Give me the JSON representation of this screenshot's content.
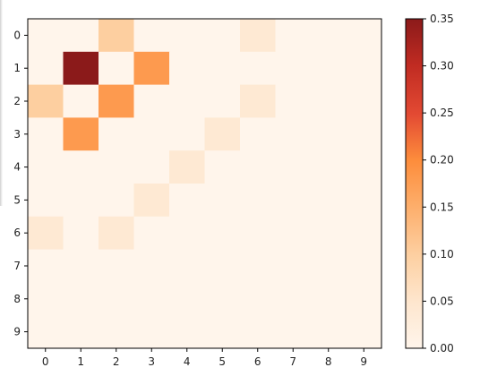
{
  "chart_data": {
    "type": "heatmap",
    "x_ticks": [
      "0",
      "1",
      "2",
      "3",
      "4",
      "5",
      "6",
      "7",
      "8",
      "9"
    ],
    "y_ticks": [
      "0",
      "1",
      "2",
      "3",
      "4",
      "5",
      "6",
      "7",
      "8",
      "9"
    ],
    "values": [
      [
        0.0,
        0.0,
        0.1,
        0.0,
        0.0,
        0.0,
        0.04,
        0.0,
        0.0,
        0.0
      ],
      [
        0.0,
        0.35,
        0.0,
        0.18,
        0.0,
        0.0,
        0.0,
        0.0,
        0.0,
        0.0
      ],
      [
        0.1,
        0.0,
        0.18,
        0.0,
        0.0,
        0.0,
        0.04,
        0.0,
        0.0,
        0.0
      ],
      [
        0.0,
        0.18,
        0.0,
        0.0,
        0.0,
        0.04,
        0.0,
        0.0,
        0.0,
        0.0
      ],
      [
        0.0,
        0.0,
        0.0,
        0.0,
        0.04,
        0.0,
        0.0,
        0.0,
        0.0,
        0.0
      ],
      [
        0.0,
        0.0,
        0.0,
        0.04,
        0.0,
        0.0,
        0.0,
        0.0,
        0.0,
        0.0
      ],
      [
        0.04,
        0.0,
        0.04,
        0.0,
        0.0,
        0.0,
        0.0,
        0.0,
        0.0,
        0.0
      ],
      [
        0.0,
        0.0,
        0.0,
        0.0,
        0.0,
        0.0,
        0.0,
        0.0,
        0.0,
        0.0
      ],
      [
        0.0,
        0.0,
        0.0,
        0.0,
        0.0,
        0.0,
        0.0,
        0.0,
        0.0,
        0.0
      ],
      [
        0.0,
        0.0,
        0.0,
        0.0,
        0.0,
        0.0,
        0.0,
        0.0,
        0.0,
        0.0
      ]
    ],
    "colormap": "Oranges-to-Reds",
    "vmin": 0.0,
    "vmax": 0.35,
    "colorbar_ticks": [
      "0.00",
      "0.05",
      "0.10",
      "0.15",
      "0.20",
      "0.25",
      "0.30",
      "0.35"
    ],
    "title": "",
    "xlabel": "",
    "ylabel": "",
    "grid": false
  }
}
